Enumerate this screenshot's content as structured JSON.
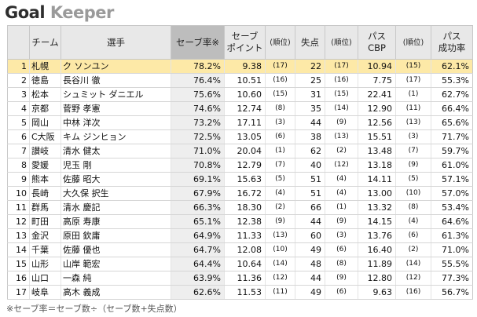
{
  "title": {
    "part1": "Goal",
    "part2": "Keeper"
  },
  "headers": {
    "team": "チーム",
    "player": "選手",
    "save_rate": "セーブ率※",
    "save_point_1": "セーブ",
    "save_point_2": "ポイント",
    "rank": "(順位)",
    "conceded": "失点",
    "pass_1": "パス",
    "pass_2": "CBP",
    "pass_rate_1": "パス",
    "pass_rate_2": "成功率"
  },
  "rows": [
    {
      "no": "1",
      "team": "札幌",
      "player": "ク ソンユン",
      "save_rate": "78.2%",
      "save_point": "9.38",
      "sp_rank": "(17)",
      "conceded": "22",
      "c_rank": "(17)",
      "pass_cbp": "10.94",
      "p_rank": "(15)",
      "pass_rate": "62.1%"
    },
    {
      "no": "2",
      "team": "徳島",
      "player": "長谷川 徹",
      "save_rate": "76.4%",
      "save_point": "10.51",
      "sp_rank": "(16)",
      "conceded": "25",
      "c_rank": "(16)",
      "pass_cbp": "7.75",
      "p_rank": "(17)",
      "pass_rate": "55.3%"
    },
    {
      "no": "3",
      "team": "松本",
      "player": "シュミット ダニエル",
      "save_rate": "75.6%",
      "save_point": "10.60",
      "sp_rank": "(15)",
      "conceded": "31",
      "c_rank": "(15)",
      "pass_cbp": "22.41",
      "p_rank": "(1)",
      "pass_rate": "62.7%"
    },
    {
      "no": "4",
      "team": "京都",
      "player": "菅野 孝憲",
      "save_rate": "74.6%",
      "save_point": "12.74",
      "sp_rank": "(8)",
      "conceded": "35",
      "c_rank": "(14)",
      "pass_cbp": "12.90",
      "p_rank": "(11)",
      "pass_rate": "66.4%"
    },
    {
      "no": "5",
      "team": "岡山",
      "player": "中林 洋次",
      "save_rate": "73.2%",
      "save_point": "17.11",
      "sp_rank": "(3)",
      "conceded": "44",
      "c_rank": "(9)",
      "pass_cbp": "12.56",
      "p_rank": "(13)",
      "pass_rate": "65.6%"
    },
    {
      "no": "6",
      "team": "C大阪",
      "player": "キム ジンヒョン",
      "save_rate": "72.5%",
      "save_point": "13.05",
      "sp_rank": "(6)",
      "conceded": "38",
      "c_rank": "(13)",
      "pass_cbp": "15.51",
      "p_rank": "(3)",
      "pass_rate": "71.7%"
    },
    {
      "no": "7",
      "team": "讃岐",
      "player": "清水 健太",
      "save_rate": "71.0%",
      "save_point": "20.04",
      "sp_rank": "(1)",
      "conceded": "62",
      "c_rank": "(2)",
      "pass_cbp": "13.48",
      "p_rank": "(7)",
      "pass_rate": "59.7%"
    },
    {
      "no": "8",
      "team": "愛媛",
      "player": "児玉 剛",
      "save_rate": "70.8%",
      "save_point": "12.79",
      "sp_rank": "(7)",
      "conceded": "40",
      "c_rank": "(12)",
      "pass_cbp": "13.18",
      "p_rank": "(9)",
      "pass_rate": "61.0%"
    },
    {
      "no": "9",
      "team": "熊本",
      "player": "佐藤 昭大",
      "save_rate": "69.1%",
      "save_point": "15.63",
      "sp_rank": "(5)",
      "conceded": "51",
      "c_rank": "(4)",
      "pass_cbp": "14.11",
      "p_rank": "(5)",
      "pass_rate": "57.1%"
    },
    {
      "no": "10",
      "team": "長崎",
      "player": "大久保 択生",
      "save_rate": "67.9%",
      "save_point": "16.72",
      "sp_rank": "(4)",
      "conceded": "51",
      "c_rank": "(4)",
      "pass_cbp": "13.00",
      "p_rank": "(10)",
      "pass_rate": "57.0%"
    },
    {
      "no": "11",
      "team": "群馬",
      "player": "清水 慶記",
      "save_rate": "66.3%",
      "save_point": "18.30",
      "sp_rank": "(2)",
      "conceded": "66",
      "c_rank": "(1)",
      "pass_cbp": "13.32",
      "p_rank": "(8)",
      "pass_rate": "53.4%"
    },
    {
      "no": "12",
      "team": "町田",
      "player": "高原 寿康",
      "save_rate": "65.1%",
      "save_point": "12.38",
      "sp_rank": "(9)",
      "conceded": "44",
      "c_rank": "(9)",
      "pass_cbp": "14.15",
      "p_rank": "(4)",
      "pass_rate": "64.6%"
    },
    {
      "no": "13",
      "team": "金沢",
      "player": "原田 欽庸",
      "save_rate": "64.9%",
      "save_point": "11.33",
      "sp_rank": "(13)",
      "conceded": "60",
      "c_rank": "(3)",
      "pass_cbp": "13.76",
      "p_rank": "(6)",
      "pass_rate": "61.3%"
    },
    {
      "no": "14",
      "team": "千葉",
      "player": "佐藤 優也",
      "save_rate": "64.7%",
      "save_point": "12.08",
      "sp_rank": "(10)",
      "conceded": "49",
      "c_rank": "(6)",
      "pass_cbp": "16.40",
      "p_rank": "(2)",
      "pass_rate": "71.0%"
    },
    {
      "no": "15",
      "team": "山形",
      "player": "山岸 範宏",
      "save_rate": "64.4%",
      "save_point": "10.64",
      "sp_rank": "(14)",
      "conceded": "48",
      "c_rank": "(8)",
      "pass_cbp": "11.89",
      "p_rank": "(14)",
      "pass_rate": "55.5%"
    },
    {
      "no": "16",
      "team": "山口",
      "player": "一森 純",
      "save_rate": "63.9%",
      "save_point": "11.36",
      "sp_rank": "(12)",
      "conceded": "44",
      "c_rank": "(9)",
      "pass_cbp": "12.80",
      "p_rank": "(12)",
      "pass_rate": "77.3%"
    },
    {
      "no": "17",
      "team": "岐阜",
      "player": "高木 義成",
      "save_rate": "62.6%",
      "save_point": "11.53",
      "sp_rank": "(11)",
      "conceded": "49",
      "c_rank": "(6)",
      "pass_cbp": "9.63",
      "p_rank": "(16)",
      "pass_rate": "56.7%"
    }
  ],
  "footnote": "※セーブ率＝セーブ数÷（セーブ数+失点数）",
  "colors": {
    "highlight_row": "#fde9a7",
    "header_bg": "#e8e8e8",
    "sorted_header_bg": "#bdbdbd"
  }
}
